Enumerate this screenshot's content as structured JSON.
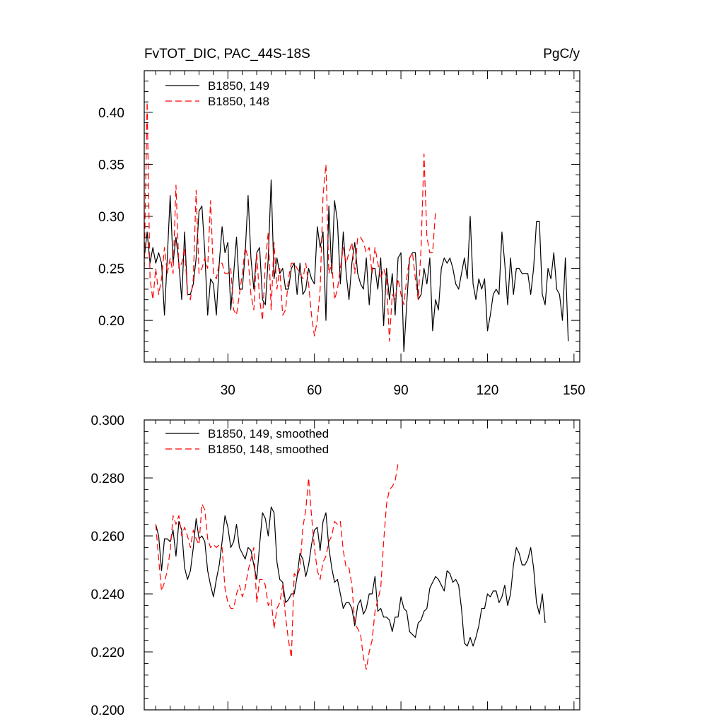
{
  "chart_data": [
    {
      "type": "line",
      "title_left": "FvTOT_DIC, PAC_44S-18S",
      "title_right": "PgC/y",
      "xlabel": "",
      "ylabel": "",
      "xlim": [
        1,
        152
      ],
      "ylim": [
        0.16,
        0.44
      ],
      "x_ticks": [
        30,
        60,
        90,
        120,
        150
      ],
      "x_tick_labels": [
        "30",
        "60",
        "90",
        "120",
        "150"
      ],
      "y_ticks": [
        0.2,
        0.25,
        0.3,
        0.35,
        0.4
      ],
      "y_tick_labels": [
        "0.20",
        "0.25",
        "0.30",
        "0.35",
        "0.40"
      ],
      "legend_position": "top-left",
      "series": [
        {
          "name": "B1850, 149",
          "color": "#000000",
          "dash": "solid",
          "x_start": 1,
          "values": [
            0.26,
            0.285,
            0.255,
            0.27,
            0.255,
            0.265,
            0.255,
            0.205,
            0.26,
            0.32,
            0.255,
            0.28,
            0.255,
            0.22,
            0.285,
            0.225,
            0.225,
            0.235,
            0.26,
            0.305,
            0.31,
            0.265,
            0.205,
            0.24,
            0.235,
            0.205,
            0.255,
            0.29,
            0.265,
            0.275,
            0.21,
            0.245,
            0.28,
            0.23,
            0.23,
            0.265,
            0.32,
            0.26,
            0.23,
            0.265,
            0.27,
            0.22,
            0.215,
            0.26,
            0.335,
            0.24,
            0.26,
            0.245,
            0.25,
            0.23,
            0.23,
            0.25,
            0.255,
            0.225,
            0.255,
            0.225,
            0.23,
            0.25,
            0.24,
            0.235,
            0.29,
            0.27,
            0.285,
            0.2,
            0.31,
            0.245,
            0.315,
            0.295,
            0.235,
            0.285,
            0.245,
            0.22,
            0.255,
            0.275,
            0.245,
            0.235,
            0.23,
            0.26,
            0.215,
            0.25,
            0.25,
            0.23,
            0.26,
            0.195,
            0.25,
            0.22,
            0.245,
            0.205,
            0.26,
            0.265,
            0.17,
            0.215,
            0.26,
            0.265,
            0.265,
            0.22,
            0.225,
            0.25,
            0.235,
            0.26,
            0.19,
            0.22,
            0.21,
            0.25,
            0.26,
            0.255,
            0.26,
            0.25,
            0.235,
            0.23,
            0.245,
            0.26,
            0.24,
            0.3,
            0.235,
            0.22,
            0.24,
            0.23,
            0.24,
            0.19,
            0.205,
            0.225,
            0.23,
            0.225,
            0.285,
            0.255,
            0.215,
            0.26,
            0.225,
            0.25,
            0.25,
            0.245,
            0.245,
            0.245,
            0.225,
            0.25,
            0.295,
            0.295,
            0.225,
            0.215,
            0.25,
            0.24,
            0.265,
            0.23,
            0.225,
            0.2,
            0.26,
            0.18
          ]
        },
        {
          "name": "B1850, 148",
          "color": "#ff0000",
          "dash": "dashed",
          "x_start": 1,
          "values": [
            0.25,
            0.41,
            0.24,
            0.22,
            0.25,
            0.225,
            0.24,
            0.27,
            0.245,
            0.26,
            0.245,
            0.33,
            0.25,
            0.255,
            0.27,
            0.225,
            0.22,
            0.24,
            0.325,
            0.245,
            0.25,
            0.26,
            0.25,
            0.315,
            0.245,
            0.24,
            0.255,
            0.255,
            0.245,
            0.245,
            0.25,
            0.21,
            0.205,
            0.225,
            0.245,
            0.27,
            0.26,
            0.225,
            0.21,
            0.265,
            0.22,
            0.2,
            0.255,
            0.285,
            0.21,
            0.275,
            0.23,
            0.25,
            0.205,
            0.21,
            0.24,
            0.255,
            0.255,
            0.25,
            0.245,
            0.24,
            0.255,
            0.235,
            0.205,
            0.185,
            0.2,
            0.23,
            0.32,
            0.35,
            0.245,
            0.255,
            0.22,
            0.23,
            0.25,
            0.27,
            0.255,
            0.265,
            0.275,
            0.245,
            0.28,
            0.28,
            0.275,
            0.265,
            0.27,
            0.245,
            0.27,
            0.255,
            0.24,
            0.25,
            0.24,
            0.18,
            0.225,
            0.22,
            0.24,
            0.225,
            0.215,
            0.24,
            0.26,
            0.265,
            0.24,
            0.22,
            0.27,
            0.36,
            0.28,
            0.265,
            0.265,
            0.305
          ]
        }
      ]
    },
    {
      "type": "line",
      "xlabel": "",
      "ylabel": "",
      "xlim": [
        1,
        152
      ],
      "ylim": [
        0.2,
        0.3
      ],
      "x_ticks": [
        30,
        60,
        90,
        120,
        150
      ],
      "x_tick_labels": [],
      "y_ticks": [
        0.2,
        0.22,
        0.24,
        0.26,
        0.28,
        0.3
      ],
      "y_tick_labels": [
        "0.200",
        "0.220",
        "0.240",
        "0.260",
        "0.280",
        "0.300"
      ],
      "legend_position": "top-left",
      "series": [
        {
          "name": "B1850, 149, smoothed",
          "color": "#000000",
          "dash": "solid",
          "x_start": 5,
          "values": [
            0.264,
            0.26,
            0.248,
            0.259,
            0.259,
            0.258,
            0.262,
            0.253,
            0.265,
            0.262,
            0.249,
            0.245,
            0.248,
            0.256,
            0.266,
            0.259,
            0.26,
            0.258,
            0.248,
            0.243,
            0.239,
            0.245,
            0.25,
            0.258,
            0.267,
            0.263,
            0.256,
            0.258,
            0.264,
            0.256,
            0.254,
            0.252,
            0.256,
            0.255,
            0.25,
            0.245,
            0.257,
            0.268,
            0.266,
            0.26,
            0.27,
            0.268,
            0.251,
            0.245,
            0.244,
            0.237,
            0.238,
            0.24,
            0.24,
            0.246,
            0.254,
            0.252,
            0.246,
            0.25,
            0.257,
            0.262,
            0.263,
            0.255,
            0.265,
            0.268,
            0.256,
            0.249,
            0.244,
            0.245,
            0.24,
            0.235,
            0.237,
            0.237,
            0.235,
            0.229,
            0.236,
            0.238,
            0.233,
            0.235,
            0.24,
            0.24,
            0.246,
            0.234,
            0.235,
            0.232,
            0.232,
            0.231,
            0.227,
            0.232,
            0.232,
            0.239,
            0.235,
            0.234,
            0.227,
            0.226,
            0.225,
            0.23,
            0.231,
            0.234,
            0.235,
            0.242,
            0.244,
            0.246,
            0.245,
            0.243,
            0.241,
            0.248,
            0.247,
            0.244,
            0.245,
            0.243,
            0.235,
            0.223,
            0.222,
            0.225,
            0.222,
            0.225,
            0.229,
            0.235,
            0.235,
            0.24,
            0.239,
            0.241,
            0.241,
            0.237,
            0.239,
            0.243,
            0.236,
            0.24,
            0.25,
            0.256,
            0.254,
            0.25,
            0.25,
            0.252,
            0.256,
            0.249,
            0.237,
            0.233,
            0.24,
            0.23
          ]
        },
        {
          "name": "B1850, 148, smoothed",
          "color": "#ff0000",
          "dash": "dashed",
          "x_start": 5,
          "values": [
            0.264,
            0.252,
            0.241,
            0.244,
            0.248,
            0.255,
            0.267,
            0.264,
            0.267,
            0.26,
            0.263,
            0.26,
            0.256,
            0.262,
            0.259,
            0.257,
            0.271,
            0.269,
            0.259,
            0.256,
            0.257,
            0.256,
            0.257,
            0.256,
            0.242,
            0.237,
            0.235,
            0.235,
            0.24,
            0.243,
            0.239,
            0.242,
            0.248,
            0.252,
            0.256,
            0.237,
            0.245,
            0.245,
            0.243,
            0.236,
            0.238,
            0.228,
            0.235,
            0.237,
            0.243,
            0.232,
            0.224,
            0.218,
            0.247,
            0.246,
            0.249,
            0.263,
            0.269,
            0.28,
            0.267,
            0.256,
            0.248,
            0.245,
            0.251,
            0.253,
            0.258,
            0.26,
            0.265,
            0.264,
            0.265,
            0.255,
            0.249,
            0.249,
            0.243,
            0.23,
            0.228,
            0.226,
            0.218,
            0.214,
            0.22,
            0.224,
            0.234,
            0.238,
            0.242,
            0.258,
            0.271,
            0.276,
            0.277,
            0.279,
            0.285
          ]
        }
      ]
    }
  ],
  "panels": [
    {
      "legend": [
        "B1850, 149",
        "B1850, 148"
      ]
    },
    {
      "legend": [
        "B1850, 149, smoothed",
        "B1850, 148, smoothed"
      ]
    }
  ]
}
